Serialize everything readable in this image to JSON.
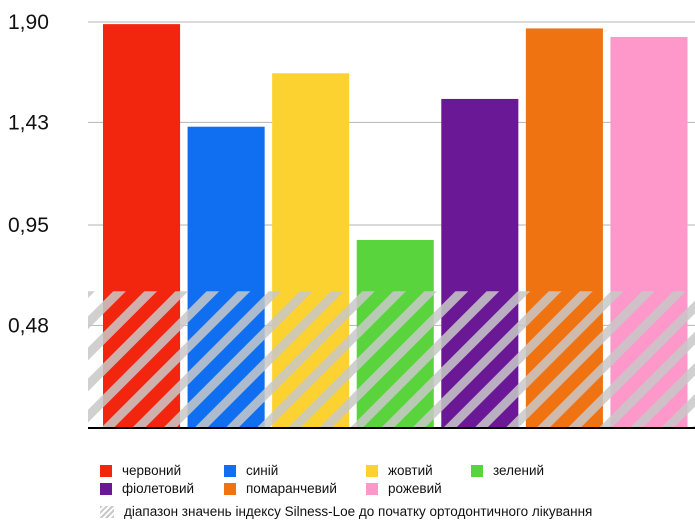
{
  "chart_data": {
    "type": "bar",
    "title": "",
    "xlabel": "",
    "ylabel": "",
    "ylim": [
      0,
      1.9
    ],
    "ticks": [
      {
        "value": 0.48,
        "label": "0,48"
      },
      {
        "value": 0.95,
        "label": "0,95"
      },
      {
        "value": 1.43,
        "label": "1,43"
      },
      {
        "value": 1.9,
        "label": "1,90"
      }
    ],
    "grid": true,
    "categories": [
      "червоний",
      "синій",
      "жовтий",
      "зелений",
      "фіолетовий",
      "помаранчевий",
      "рожевий"
    ],
    "values": [
      1.89,
      1.41,
      1.66,
      0.88,
      1.54,
      1.87,
      1.83
    ],
    "colors": [
      "#f2260f",
      "#0f6ff0",
      "#fbd230",
      "#5ad43c",
      "#6a1896",
      "#f07312",
      "#fe97ca"
    ],
    "band": {
      "range": [
        0.64,
        0.0
      ],
      "label": "діапазон значень індексу Silness-Loe до початку ортодонтичного лікування",
      "color": "#c8c8c8"
    },
    "legend": "bottom"
  }
}
